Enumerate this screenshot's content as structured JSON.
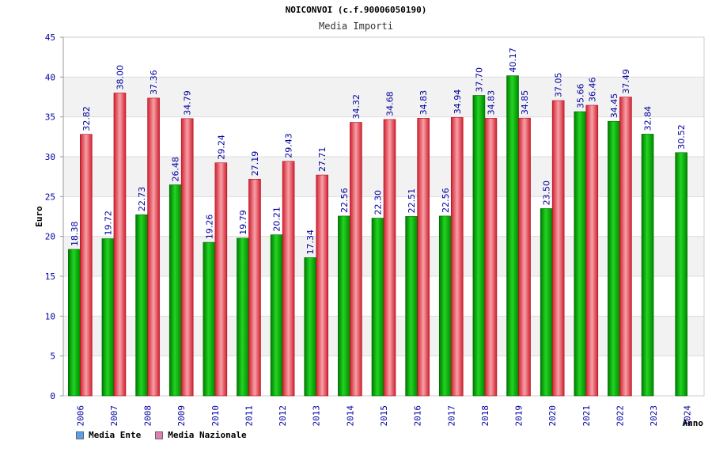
{
  "chart_data": {
    "type": "bar",
    "title": "NOICONVOI (c.f.90006050190)",
    "subtitle": "Media Importi",
    "xlabel": "Anno",
    "ylabel": "Euro",
    "ylim": [
      0,
      45
    ],
    "yticks": [
      0,
      5,
      10,
      15,
      20,
      25,
      30,
      35,
      40,
      45
    ],
    "categories": [
      "2006",
      "2007",
      "2008",
      "2009",
      "2010",
      "2011",
      "2012",
      "2013",
      "2014",
      "2015",
      "2016",
      "2017",
      "2018",
      "2019",
      "2020",
      "2021",
      "2022",
      "2023",
      "2024"
    ],
    "series": [
      {
        "name": "Media Ente",
        "color": "#00b000",
        "values": [
          18.38,
          19.72,
          22.73,
          26.48,
          19.26,
          19.79,
          20.21,
          17.34,
          22.56,
          22.3,
          22.51,
          22.56,
          37.7,
          40.17,
          23.5,
          35.66,
          34.45,
          32.84,
          30.52
        ],
        "labels": [
          "18.38",
          "19.72",
          "22.73",
          "26.48",
          "19.26",
          "19.79",
          "20.21",
          "17.34",
          "22.56",
          "22.30",
          "22.51",
          "22.56",
          "37.70",
          "40.17",
          "23.50",
          "35.66",
          "34.45",
          "32.84",
          "30.52"
        ]
      },
      {
        "name": "Media Nazionale",
        "color": "#e83a4f",
        "values": [
          32.82,
          38.0,
          37.36,
          34.79,
          29.24,
          27.19,
          29.43,
          27.71,
          34.32,
          34.68,
          34.83,
          34.94,
          34.83,
          34.85,
          37.05,
          36.46,
          37.49,
          null,
          null
        ],
        "labels": [
          "32.82",
          "38.00",
          "37.36",
          "34.79",
          "29.24",
          "27.19",
          "29.43",
          "27.71",
          "34.32",
          "34.68",
          "34.83",
          "34.94",
          "34.83",
          "34.85",
          "37.05",
          "36.46",
          "37.49",
          null,
          null
        ]
      }
    ],
    "legend": [
      {
        "label": "Media Ente",
        "color": "#5aa0f0"
      },
      {
        "label": "Media Nazionale",
        "color": "#e080b0"
      }
    ],
    "legend_position": "bottom-left",
    "grid": true
  }
}
